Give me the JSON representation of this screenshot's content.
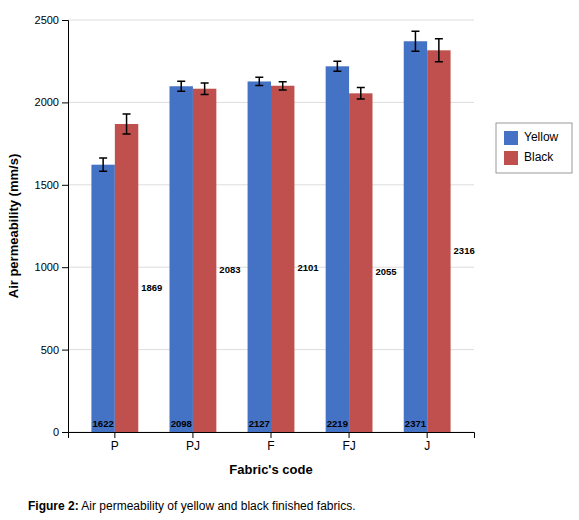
{
  "chart_data": {
    "type": "bar",
    "categories": [
      "P",
      "PJ",
      "F",
      "FJ",
      "J"
    ],
    "series": [
      {
        "name": "Yellow",
        "color": "#4472C4",
        "values": [
          1622,
          2098,
          2127,
          2219,
          2371
        ],
        "errors": [
          40,
          30,
          25,
          30,
          60
        ]
      },
      {
        "name": "Black",
        "color": "#C0504D",
        "values": [
          1869,
          2083,
          2101,
          2055,
          2316
        ],
        "errors": [
          60,
          35,
          25,
          35,
          70
        ]
      }
    ],
    "xlabel": "Fabric's code",
    "ylabel": "Air permeability (mm/s)",
    "ylim": [
      0,
      2500
    ],
    "yticks": [
      0,
      500,
      1000,
      1500,
      2000,
      2500
    ],
    "grid": true,
    "legend": "right",
    "data_labels": true,
    "annotations": [
      "Figure 2:",
      " Air permeability of yellow and black finished fabrics."
    ]
  }
}
